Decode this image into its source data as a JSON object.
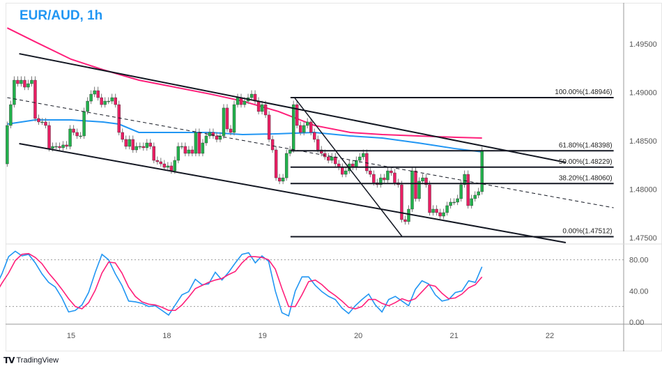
{
  "header": {
    "title": "EUR/AUD, 1h"
  },
  "footer": {
    "logo_text": "TradingView",
    "logo_mark": "TV"
  },
  "colors": {
    "up": "#22b14c",
    "down": "#e91e63",
    "ma_pink": "#ff1f7a",
    "ma_blue": "#2196f3",
    "stoch_k": "#2196f3",
    "stoch_d": "#ff1f7a",
    "drawings": "#131722"
  },
  "chart_data": [
    {
      "type": "candlestick",
      "symbol": "EUR/AUD",
      "interval": "1h",
      "ylim": [
        1.4745,
        1.4995
      ],
      "y_ticks": [
        "1.49500",
        "1.49000",
        "1.48500",
        "1.48000",
        "1.47500"
      ],
      "y_tick_values": [
        1.495,
        1.49,
        1.485,
        1.48,
        1.475
      ],
      "x_ticks": [
        "15",
        "18",
        "19",
        "20",
        "21",
        "22"
      ],
      "grid": false,
      "first_bar": "14 08:00",
      "last_bar": "21 07:00",
      "first_open": 1.48263,
      "closes": [
        1.48659,
        1.48874,
        1.49126,
        1.4909,
        1.49126,
        1.49054,
        1.4909,
        1.49126,
        1.48731,
        1.48695,
        1.48695,
        1.48659,
        1.48422,
        1.48443,
        1.48443,
        1.48429,
        1.48458,
        1.48443,
        1.48623,
        1.48587,
        1.48551,
        1.48551,
        1.48803,
        1.4891,
        1.48982,
        1.49018,
        1.48946,
        1.48874,
        1.4891,
        1.4891,
        1.48946,
        1.48874,
        1.48587,
        1.48515,
        1.48443,
        1.48515,
        1.48407,
        1.48443,
        1.48443,
        1.48429,
        1.48479,
        1.48443,
        1.48299,
        1.48285,
        1.48263,
        1.48227,
        1.48242,
        1.48191,
        1.48299,
        1.48443,
        1.48443,
        1.48371,
        1.48407,
        1.48371,
        1.48587,
        1.48371,
        1.48479,
        1.48551,
        1.48587,
        1.48551,
        1.48515,
        1.48551,
        1.48839,
        1.48623,
        1.48587,
        1.48874,
        1.48946,
        1.48874,
        1.4891,
        1.48946,
        1.48982,
        1.4891,
        1.48803,
        1.48874,
        1.48767,
        1.48515,
        1.48407,
        1.48119,
        1.48084,
        1.48119,
        1.48371,
        1.48407,
        1.48874,
        1.48659,
        1.48587,
        1.48659,
        1.48695,
        1.48587,
        1.48515,
        1.48407,
        1.48371,
        1.48335,
        1.48299,
        1.48335,
        1.48263,
        1.48227,
        1.48155,
        1.48191,
        1.48263,
        1.48227,
        1.48299,
        1.48335,
        1.48371,
        1.48191,
        1.48155,
        1.48069,
        1.48048,
        1.48119,
        1.48098,
        1.48191,
        1.4817,
        1.48069,
        1.48048,
        1.47688,
        1.47667,
        1.47796,
        1.48191,
        1.47904,
        1.48084,
        1.48119,
        1.48048,
        1.4776,
        1.47796,
        1.4776,
        1.47724,
        1.4776,
        1.47832,
        1.47868,
        1.47868,
        1.47904,
        1.48048,
        1.48155,
        1.47832,
        1.47904,
        1.4794,
        1.47976,
        1.48398
      ],
      "overlays": {
        "ma_pink": [
          [
            "14 08:00",
            1.49665
          ],
          [
            "14 15:00",
            1.49522
          ],
          [
            "15 00:00",
            1.49342
          ],
          [
            "15 08:00",
            1.49234
          ],
          [
            "15 17:00",
            1.49126
          ],
          [
            "18 02:00",
            1.49054
          ],
          [
            "18 11:00",
            1.48982
          ],
          [
            "18 19:00",
            1.4891
          ],
          [
            "19 04:00",
            1.48803
          ],
          [
            "19 13:00",
            1.48659
          ],
          [
            "19 22:00",
            1.48587
          ],
          [
            "20 06:00",
            1.48565
          ],
          [
            "20 15:00",
            1.48551
          ],
          [
            "21 00:00",
            1.48537
          ],
          [
            "21 07:00",
            1.48529
          ]
        ],
        "ma_blue": [
          [
            "14 08:00",
            1.48673
          ],
          [
            "14 15:00",
            1.48716
          ],
          [
            "15 00:00",
            1.48716
          ],
          [
            "15 08:00",
            1.48695
          ],
          [
            "15 12:00",
            1.48673
          ],
          [
            "15 17:00",
            1.48587
          ],
          [
            "18 02:00",
            1.48587
          ],
          [
            "18 11:00",
            1.48587
          ],
          [
            "18 19:00",
            1.48565
          ],
          [
            "19 04:00",
            1.48573
          ],
          [
            "19 13:00",
            1.48587
          ],
          [
            "19 22:00",
            1.48551
          ],
          [
            "20 06:00",
            1.48529
          ],
          [
            "20 15:00",
            1.48479
          ],
          [
            "21 00:00",
            1.48422
          ],
          [
            "21 07:00",
            1.48386
          ]
        ]
      },
      "drawings": {
        "channel_upper": [
          [
            "14 11:00",
            1.49399
          ],
          [
            "22 04:00",
            1.48278
          ]
        ],
        "channel_lower": [
          [
            "14 11:00",
            1.48472
          ],
          [
            "22 04:00",
            1.47451
          ]
        ],
        "channel_mid_dashed": [
          [
            "14 08:00",
            1.48946
          ],
          [
            "22 16:00",
            1.4781
          ]
        ],
        "fib_trend": [
          [
            "19 08:00",
            1.48946
          ],
          [
            "20 11:00",
            1.47512
          ]
        ],
        "fib_start": "19 07:00",
        "fib_end": "22 16:00",
        "fib_levels": [
          {
            "label": "100.00%(1.48946)",
            "price": 1.48946
          },
          {
            "label": "61.80%(1.48398)",
            "price": 1.48398
          },
          {
            "label": "50.00%(1.48229)",
            "price": 1.48229
          },
          {
            "label": "38.20%(1.48060)",
            "price": 1.4806
          },
          {
            "label": "0.00%(1.47512)",
            "price": 1.47512
          }
        ]
      }
    },
    {
      "type": "line",
      "indicator": "stochastic",
      "ylim": [
        0,
        100
      ],
      "y_ticks": [
        "80.00",
        "40.00",
        "0.00"
      ],
      "y_tick_values": [
        80,
        40,
        0
      ],
      "bands": [
        80,
        20
      ],
      "first_bar": "14 05:00",
      "last_bar": "21 07:00",
      "series": [
        {
          "key": "k",
          "values": [
            44,
            62,
            84,
            91,
            85,
            87,
            76,
            62,
            51,
            45,
            31,
            13,
            15,
            22,
            38,
            64,
            87,
            80,
            62,
            47,
            27,
            26,
            24,
            20,
            21,
            15,
            9,
            22,
            35,
            39,
            55,
            48,
            49,
            64,
            54,
            64,
            76,
            87,
            89,
            76,
            85,
            78,
            40,
            12,
            8,
            40,
            58,
            58,
            47,
            39,
            33,
            29,
            18,
            11,
            21,
            29,
            36,
            22,
            13,
            29,
            33,
            27,
            21,
            42,
            53,
            49,
            35,
            27,
            29,
            38,
            40,
            53,
            51,
            71
          ]
        },
        {
          "key": "d",
          "values": [
            35,
            50,
            63,
            79,
            87,
            88,
            83,
            75,
            63,
            53,
            42,
            30,
            20,
            17,
            25,
            41,
            63,
            77,
            76,
            63,
            45,
            33,
            26,
            23,
            22,
            19,
            15,
            15,
            22,
            32,
            43,
            47,
            51,
            54,
            56,
            61,
            65,
            76,
            84,
            84,
            83,
            80,
            68,
            43,
            20,
            20,
            35,
            52,
            54,
            48,
            40,
            34,
            27,
            19,
            17,
            20,
            29,
            29,
            24,
            21,
            25,
            30,
            27,
            30,
            39,
            48,
            46,
            37,
            30,
            31,
            36,
            44,
            48,
            58
          ]
        }
      ]
    }
  ]
}
